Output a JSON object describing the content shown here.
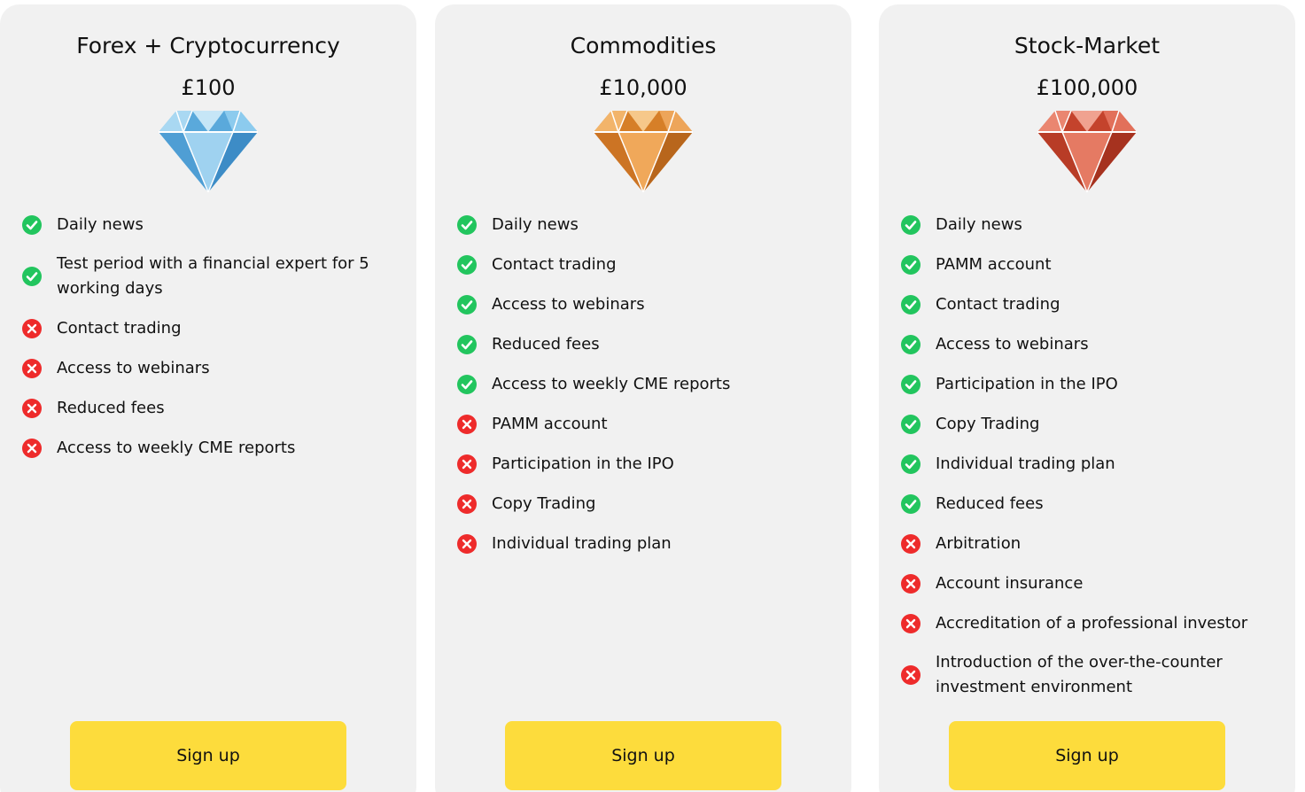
{
  "colors": {
    "card_background": "#f1f1f1",
    "button_background": "#fddc3c",
    "check_green": "#22c55e",
    "cross_red": "#ee2b2b",
    "gem_blue": "#6ab2e0",
    "gem_orange": "#e8953c",
    "gem_red": "#d9553d"
  },
  "plans": [
    {
      "title": "Forex + Cryptocurrency",
      "price": "£100",
      "gem_icon": "diamond-blue-icon",
      "features": [
        {
          "text": "Daily news",
          "included": true,
          "icon": "check-circle-icon"
        },
        {
          "text": "Test period with a financial expert for 5 working days",
          "included": true,
          "icon": "check-circle-icon"
        },
        {
          "text": "Contact trading",
          "included": false,
          "icon": "x-circle-icon"
        },
        {
          "text": "Access to webinars",
          "included": false,
          "icon": "x-circle-icon"
        },
        {
          "text": "Reduced fees",
          "included": false,
          "icon": "x-circle-icon"
        },
        {
          "text": "Access to weekly CME reports",
          "included": false,
          "icon": "x-circle-icon"
        }
      ],
      "button_label": "Sign up"
    },
    {
      "title": "Commodities",
      "price": "£10,000",
      "gem_icon": "diamond-orange-icon",
      "features": [
        {
          "text": "Daily news",
          "included": true,
          "icon": "check-circle-icon"
        },
        {
          "text": "Contact trading",
          "included": true,
          "icon": "check-circle-icon"
        },
        {
          "text": "Access to webinars",
          "included": true,
          "icon": "check-circle-icon"
        },
        {
          "text": "Reduced fees",
          "included": true,
          "icon": "check-circle-icon"
        },
        {
          "text": "Access to weekly CME reports",
          "included": true,
          "icon": "check-circle-icon"
        },
        {
          "text": "PAMM account",
          "included": false,
          "icon": "x-circle-icon"
        },
        {
          "text": "Participation in the IPO",
          "included": false,
          "icon": "x-circle-icon"
        },
        {
          "text": "Copy Trading",
          "included": false,
          "icon": "x-circle-icon"
        },
        {
          "text": "Individual trading plan",
          "included": false,
          "icon": "x-circle-icon"
        }
      ],
      "button_label": "Sign up"
    },
    {
      "title": "Stock-Market",
      "price": "£100,000",
      "gem_icon": "diamond-red-icon",
      "features": [
        {
          "text": "Daily news",
          "included": true,
          "icon": "check-circle-icon"
        },
        {
          "text": "PAMM account",
          "included": true,
          "icon": "check-circle-icon"
        },
        {
          "text": "Contact trading",
          "included": true,
          "icon": "check-circle-icon"
        },
        {
          "text": "Access to webinars",
          "included": true,
          "icon": "check-circle-icon"
        },
        {
          "text": "Participation in the IPO",
          "included": true,
          "icon": "check-circle-icon"
        },
        {
          "text": "Copy Trading",
          "included": true,
          "icon": "check-circle-icon"
        },
        {
          "text": "Individual trading plan",
          "included": true,
          "icon": "check-circle-icon"
        },
        {
          "text": "Reduced fees",
          "included": true,
          "icon": "check-circle-icon"
        },
        {
          "text": "Arbitration",
          "included": false,
          "icon": "x-circle-icon"
        },
        {
          "text": "Account insurance",
          "included": false,
          "icon": "x-circle-icon"
        },
        {
          "text": "Accreditation of a professional investor",
          "included": false,
          "icon": "x-circle-icon"
        },
        {
          "text": "Introduction of the over-the-counter investment environment",
          "included": false,
          "icon": "x-circle-icon"
        }
      ],
      "button_label": "Sign up"
    }
  ]
}
